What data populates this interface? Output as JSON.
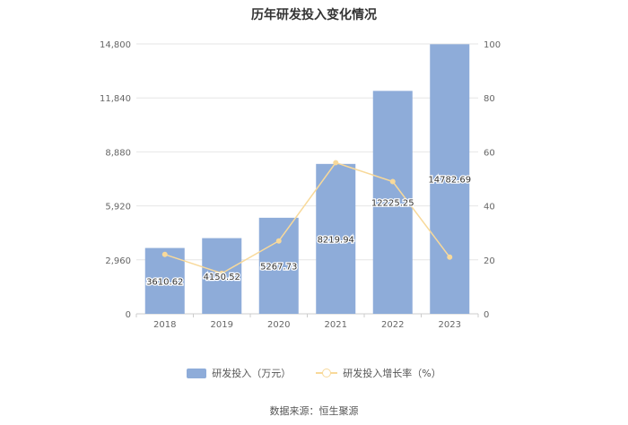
{
  "chart_data": {
    "type": "bar",
    "title": "历年研发投入变化情况",
    "categories": [
      "2018",
      "2019",
      "2020",
      "2021",
      "2022",
      "2023"
    ],
    "series": [
      {
        "name": "研发投入（万元）",
        "type": "bar",
        "axis": "left",
        "values": [
          3610.62,
          4150.52,
          5267.73,
          8219.94,
          12225.25,
          14782.69
        ],
        "labels": [
          "3610.62",
          "4150.52",
          "5267.73",
          "8219.94",
          "12225.25",
          "14782.69"
        ]
      },
      {
        "name": "研发投入增长率（%）",
        "type": "line",
        "axis": "right",
        "values": [
          22,
          15,
          27,
          56,
          49,
          21
        ]
      }
    ],
    "y_left": {
      "min": 0,
      "max": 14800,
      "ticks": [
        0,
        2960,
        5920,
        8880,
        11840,
        14800
      ],
      "tick_labels": [
        "0",
        "2,960",
        "5,920",
        "8,880",
        "11,840",
        "14,800"
      ]
    },
    "y_right": {
      "min": 0,
      "max": 100,
      "ticks": [
        0,
        20,
        40,
        60,
        80,
        100
      ],
      "tick_labels": [
        "0",
        "20",
        "40",
        "60",
        "80",
        "100"
      ]
    },
    "grid": true,
    "legend_position": "bottom",
    "colors": {
      "bar": "#8eacd9",
      "line": "#f8d99a"
    }
  },
  "source": "数据来源：恒生聚源"
}
